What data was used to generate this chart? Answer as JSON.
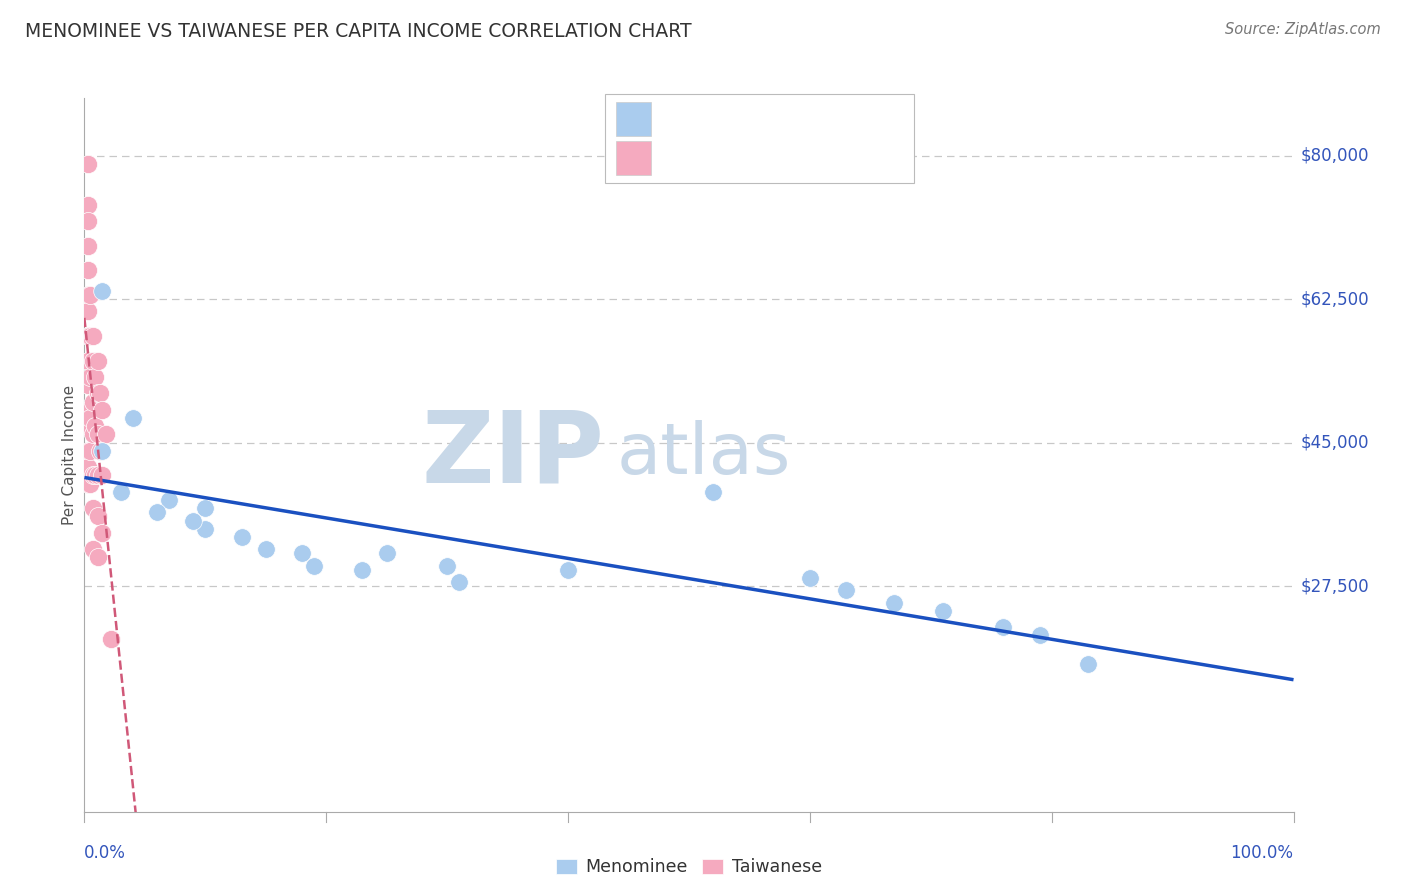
{
  "title": "MENOMINEE VS TAIWANESE PER CAPITA INCOME CORRELATION CHART",
  "source": "Source: ZipAtlas.com",
  "ylabel": "Per Capita Income",
  "menominee_x": [
    0.015,
    0.04,
    0.07,
    0.1,
    0.1,
    0.13,
    0.15,
    0.18,
    0.19,
    0.23,
    0.25,
    0.3,
    0.31,
    0.4,
    0.52,
    0.6,
    0.63,
    0.67,
    0.71,
    0.76,
    0.79,
    0.83,
    0.015,
    0.03,
    0.06,
    0.09
  ],
  "menominee_y": [
    63500,
    48000,
    38000,
    37000,
    34500,
    33500,
    32000,
    31500,
    30000,
    29500,
    31500,
    30000,
    28000,
    29500,
    39000,
    28500,
    27000,
    25500,
    24500,
    22500,
    21500,
    18000,
    44000,
    39000,
    36500,
    35500
  ],
  "taiwanese_x": [
    0.003,
    0.003,
    0.003,
    0.003,
    0.003,
    0.003,
    0.003,
    0.003,
    0.003,
    0.003,
    0.003,
    0.003,
    0.003,
    0.003,
    0.003,
    0.005,
    0.005,
    0.005,
    0.005,
    0.005,
    0.005,
    0.007,
    0.007,
    0.007,
    0.007,
    0.007,
    0.007,
    0.007,
    0.009,
    0.009,
    0.009,
    0.011,
    0.011,
    0.011,
    0.011,
    0.011,
    0.011,
    0.013,
    0.013,
    0.015,
    0.015,
    0.015,
    0.018,
    0.022
  ],
  "taiwanese_y": [
    79000,
    74000,
    72000,
    69000,
    66000,
    63000,
    61000,
    58000,
    55000,
    52000,
    49000,
    47000,
    44000,
    42000,
    40000,
    63000,
    58000,
    53000,
    48000,
    44000,
    40000,
    58000,
    55000,
    50000,
    46000,
    41000,
    37000,
    32000,
    53000,
    47000,
    41000,
    55000,
    51000,
    46000,
    41000,
    36000,
    31000,
    51000,
    44000,
    49000,
    41000,
    34000,
    46000,
    21000
  ],
  "blue_color": "#aaccee",
  "pink_color": "#f5aabf",
  "line_blue_color": "#1a50c0",
  "line_pink_color": "#d05878",
  "watermark_color": "#c8d8e8",
  "grid_color": "#c8c8c8",
  "axis_color": "#aaaaaa",
  "title_color": "#333333",
  "ylabel_color": "#555555",
  "tick_label_color": "#3355bb",
  "source_color": "#777777",
  "legend_text_color": "#3355bb",
  "ytick_values": [
    27500,
    45000,
    62500,
    80000
  ],
  "ytick_labels": [
    "$27,500",
    "$45,000",
    "$62,500",
    "$80,000"
  ],
  "ymin": 0,
  "ymax": 87000,
  "xmin": 0.0,
  "xmax": 1.0,
  "watermark_zip": "ZIP",
  "watermark_atlas": "atlas"
}
